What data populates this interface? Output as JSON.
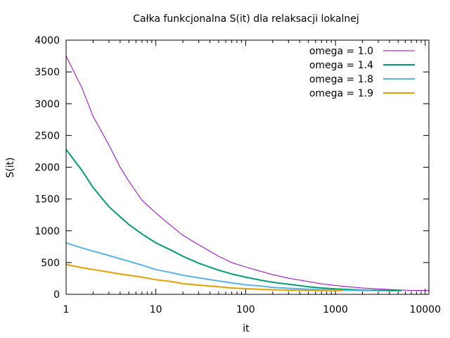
{
  "chart_data": {
    "type": "line",
    "title": "Całka funkcjonalna S(it) dla relaksacji lokalnej",
    "xlabel": "it",
    "ylabel": "S(it)",
    "xscale": "log",
    "xlim": [
      1,
      11000
    ],
    "ylim": [
      0,
      4000
    ],
    "xticks": [
      1,
      10,
      100,
      1000,
      10000
    ],
    "xtick_labels": [
      "1",
      "10",
      "100",
      "1000",
      "10000"
    ],
    "yticks": [
      0,
      500,
      1000,
      1500,
      2000,
      2500,
      3000,
      3500,
      4000
    ],
    "ytick_labels": [
      "0",
      "500",
      "1000",
      "1500",
      "2000",
      "2500",
      "3000",
      "3500",
      "4000"
    ],
    "grid": false,
    "legend_position": "top-right",
    "series": [
      {
        "name": "omega = 1.0",
        "color": "#9400d3",
        "x": [
          1,
          1.5,
          2,
          3,
          4,
          5,
          7,
          10,
          15,
          20,
          30,
          50,
          70,
          100,
          150,
          200,
          300,
          500,
          700,
          1000,
          1500,
          2000,
          3000,
          5000,
          7000,
          10000,
          11000
        ],
        "y": [
          3750,
          3250,
          2800,
          2350,
          2000,
          1780,
          1480,
          1280,
          1070,
          930,
          780,
          600,
          500,
          430,
          360,
          310,
          255,
          200,
          165,
          140,
          115,
          100,
          85,
          70,
          62,
          60,
          60
        ]
      },
      {
        "name": "omega = 1.4",
        "color": "#009e73",
        "x": [
          1,
          1.5,
          2,
          3,
          4,
          5,
          7,
          10,
          15,
          20,
          30,
          50,
          70,
          100,
          150,
          200,
          300,
          500,
          700,
          1000,
          1500,
          2000,
          3000,
          4000,
          5500
        ],
        "y": [
          2280,
          1950,
          1680,
          1380,
          1220,
          1100,
          950,
          810,
          690,
          600,
          490,
          380,
          320,
          270,
          220,
          190,
          160,
          120,
          100,
          85,
          75,
          68,
          62,
          60,
          60
        ]
      },
      {
        "name": "omega = 1.8",
        "color": "#56b4e9",
        "x": [
          1,
          1.5,
          2,
          3,
          4,
          5,
          7,
          10,
          15,
          20,
          30,
          50,
          70,
          100,
          150,
          200,
          300,
          500,
          700,
          1000,
          1500,
          2000,
          2500
        ],
        "y": [
          810,
          730,
          680,
          610,
          560,
          520,
          460,
          390,
          340,
          300,
          260,
          210,
          180,
          150,
          130,
          110,
          95,
          80,
          72,
          66,
          62,
          60,
          60
        ]
      },
      {
        "name": "omega = 1.9",
        "color": "#e69f00",
        "x": [
          1,
          1.5,
          2,
          3,
          4,
          5,
          7,
          10,
          15,
          20,
          30,
          50,
          70,
          100,
          150,
          200,
          300,
          500,
          700,
          1000,
          1200
        ],
        "y": [
          470,
          420,
          390,
          350,
          320,
          300,
          270,
          230,
          200,
          170,
          145,
          120,
          100,
          90,
          78,
          72,
          66,
          62,
          60,
          60,
          60
        ]
      }
    ]
  }
}
